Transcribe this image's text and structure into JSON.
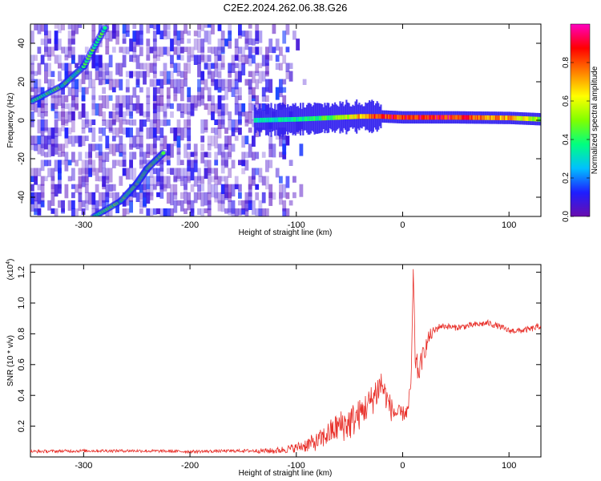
{
  "chart_data": [
    {
      "type": "heatmap",
      "title": "C2E2.2024.262.06.38.G26",
      "xlabel": "Height of straight line (km)",
      "ylabel": "Frequency (Hz)",
      "xlim": [
        -350,
        130
      ],
      "ylim": [
        -50,
        50
      ],
      "x_ticks": [
        -300,
        -200,
        -100,
        0,
        100
      ],
      "y_ticks": [
        -40,
        -20,
        0,
        20,
        40
      ],
      "colorbar": {
        "label": "Normalized spectral amplitude",
        "range": [
          0,
          1
        ],
        "ticks": [
          0.0,
          0.2,
          0.4,
          0.6,
          0.8
        ],
        "tick_labels": [
          "0.0",
          "0.2",
          "0.4",
          "0.6",
          "0.8"
        ],
        "colormap": [
          "#6a0dad",
          "#1e1eff",
          "#00c0ff",
          "#00ff80",
          "#80ff00",
          "#ffff00",
          "#ff8000",
          "#ff0000",
          "#ff00c0"
        ]
      },
      "features": [
        {
          "name": "noise_region",
          "x_range": [
            -350,
            -100
          ],
          "y_range": [
            -50,
            50
          ],
          "amplitude": 0.1
        },
        {
          "name": "diagonal_trace_upper",
          "points": [
            [
              -348,
              10
            ],
            [
              -320,
              18
            ],
            [
              -300,
              28
            ],
            [
              -280,
              48
            ]
          ],
          "amplitude": 0.4
        },
        {
          "name": "diagonal_trace_lower",
          "points": [
            [
              -290,
              -50
            ],
            [
              -265,
              -42
            ],
            [
              -250,
              -33
            ],
            [
              -240,
              -25
            ],
            [
              -225,
              -17
            ]
          ],
          "amplitude": 0.45
        },
        {
          "name": "central_band",
          "points": [
            [
              -140,
              0
            ],
            [
              -100,
              0.5
            ],
            [
              -80,
              1
            ],
            [
              -60,
              1.5
            ],
            [
              -40,
              2
            ],
            [
              -20,
              2
            ],
            [
              0,
              1.5
            ],
            [
              50,
              1.5
            ],
            [
              100,
              1.2
            ],
            [
              130,
              0.5
            ]
          ],
          "amplitude": [
            0.3,
            0.35,
            0.4,
            0.5,
            0.7,
            0.85,
            0.9,
            0.85,
            0.7,
            0.5
          ]
        }
      ]
    },
    {
      "type": "line",
      "title": "",
      "xlabel": "Height of straight line (km)",
      "ylabel": "SNR (10 * v/v)",
      "multiplier_label": "(x10",
      "multiplier_exp": "4",
      "multiplier_close": ")",
      "xlim": [
        -350,
        130
      ],
      "ylim": [
        0,
        1.25
      ],
      "x_ticks": [
        -300,
        -200,
        -100,
        0,
        100
      ],
      "y_ticks": [
        0.2,
        0.4,
        0.6,
        0.8,
        1.0,
        1.2
      ],
      "y_tick_labels": [
        "0.2",
        "0.4",
        "0.6",
        "0.8",
        "1.0",
        "1.2"
      ],
      "series": [
        {
          "color": "#e8302a",
          "x": [
            -350,
            -300,
            -250,
            -200,
            -150,
            -120,
            -100,
            -90,
            -80,
            -70,
            -60,
            -50,
            -40,
            -30,
            -25,
            -20,
            -15,
            -10,
            -5,
            0,
            5,
            8,
            10,
            12,
            15,
            20,
            25,
            30,
            35,
            40,
            50,
            60,
            70,
            80,
            90,
            100,
            110,
            120,
            130
          ],
          "y": [
            0.035,
            0.04,
            0.04,
            0.035,
            0.04,
            0.04,
            0.06,
            0.08,
            0.1,
            0.15,
            0.2,
            0.22,
            0.28,
            0.36,
            0.42,
            0.48,
            0.38,
            0.3,
            0.28,
            0.28,
            0.3,
            0.5,
            1.22,
            0.62,
            0.55,
            0.68,
            0.78,
            0.82,
            0.85,
            0.85,
            0.84,
            0.85,
            0.86,
            0.87,
            0.85,
            0.82,
            0.82,
            0.83,
            0.85
          ],
          "noise": [
            0.01,
            0.01,
            0.01,
            0.01,
            0.01,
            0.02,
            0.03,
            0.05,
            0.06,
            0.08,
            0.1,
            0.12,
            0.1,
            0.1,
            0.12,
            0.1,
            0.08,
            0.08,
            0.06,
            0.05,
            0.05,
            0.05,
            0.0,
            0.1,
            0.08,
            0.06,
            0.05,
            0.03,
            0.02,
            0.02,
            0.02,
            0.02,
            0.02,
            0.02,
            0.02,
            0.02,
            0.02,
            0.02,
            0.02
          ]
        }
      ]
    }
  ]
}
